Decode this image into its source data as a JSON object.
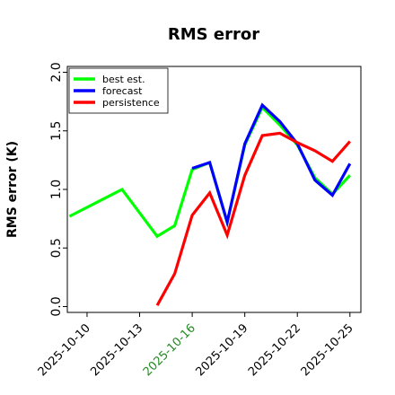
{
  "chart_data": {
    "type": "line",
    "title": "RMS error",
    "xlabel": "",
    "ylabel": "RMS error (K)",
    "ylim": [
      -0.05,
      2.05
    ],
    "yticks": [
      "0.0",
      "0.5",
      "1.0",
      "1.5",
      "2.0"
    ],
    "xlim": [
      "2025-10-08T21:00",
      "2025-10-25T15:00"
    ],
    "xticks": [
      "2025-10-10",
      "2025-10-13",
      "2025-10-16",
      "2025-10-19",
      "2025-10-22",
      "2025-10-25"
    ],
    "highlighted_xtick": "2025-10-16",
    "highlight_color": "#228B22",
    "legend_position": "upper left",
    "grid": false,
    "series": [
      {
        "name": "best est.",
        "color": "#00ff00",
        "points": [
          [
            "2025-10-09T00:00",
            0.77
          ],
          [
            "2025-10-12T00:00",
            1.0
          ],
          [
            "2025-10-13T00:00",
            0.8
          ],
          [
            "2025-10-14T00:00",
            0.6
          ],
          [
            "2025-10-15T00:00",
            0.69
          ],
          [
            "2025-10-16T00:00",
            1.17
          ],
          [
            "2025-10-17T00:00",
            1.23
          ],
          [
            "2025-10-18T00:00",
            0.72
          ],
          [
            "2025-10-19T00:00",
            1.38
          ],
          [
            "2025-10-20T00:00",
            1.7
          ],
          [
            "2025-10-21T00:00",
            1.55
          ],
          [
            "2025-10-22T00:00",
            1.38
          ],
          [
            "2025-10-23T00:00",
            1.1
          ],
          [
            "2025-10-24T00:00",
            0.96
          ],
          [
            "2025-10-25T00:00",
            1.12
          ]
        ]
      },
      {
        "name": "forecast",
        "color": "#0000ff",
        "points": [
          [
            "2025-10-16T00:00",
            1.18
          ],
          [
            "2025-10-17T00:00",
            1.23
          ],
          [
            "2025-10-18T00:00",
            0.72
          ],
          [
            "2025-10-19T00:00",
            1.39
          ],
          [
            "2025-10-20T00:00",
            1.72
          ],
          [
            "2025-10-21T00:00",
            1.58
          ],
          [
            "2025-10-22T00:00",
            1.39
          ],
          [
            "2025-10-23T00:00",
            1.08
          ],
          [
            "2025-10-24T00:00",
            0.95
          ],
          [
            "2025-10-25T00:00",
            1.22
          ]
        ]
      },
      {
        "name": "persistence",
        "color": "#ff0000",
        "points": [
          [
            "2025-10-14T00:00",
            0.01
          ],
          [
            "2025-10-15T00:00",
            0.28
          ],
          [
            "2025-10-16T00:00",
            0.78
          ],
          [
            "2025-10-17T00:00",
            0.97
          ],
          [
            "2025-10-18T00:00",
            0.61
          ],
          [
            "2025-10-19T00:00",
            1.12
          ],
          [
            "2025-10-20T00:00",
            1.46
          ],
          [
            "2025-10-21T00:00",
            1.48
          ],
          [
            "2025-10-22T00:00",
            1.4
          ],
          [
            "2025-10-23T00:00",
            1.33
          ],
          [
            "2025-10-24T00:00",
            1.24
          ],
          [
            "2025-10-25T00:00",
            1.41
          ]
        ]
      }
    ]
  }
}
